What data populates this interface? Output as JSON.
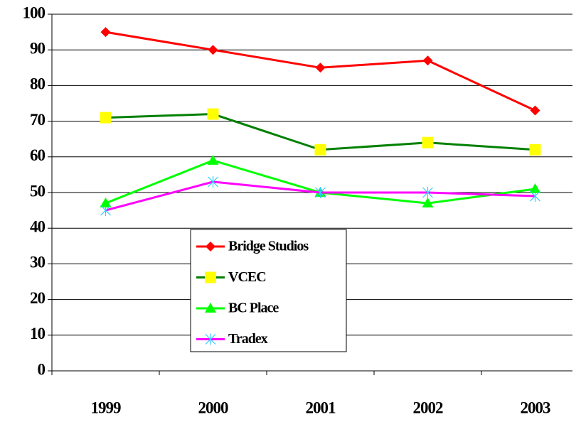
{
  "chart_data": {
    "type": "line",
    "categories": [
      "1999",
      "2000",
      "2001",
      "2002",
      "2003"
    ],
    "series": [
      {
        "name": "Bridge Studios",
        "color": "#ff0000",
        "marker": "diamond",
        "marker_color": "#ff0000",
        "values": [
          95,
          90,
          85,
          87,
          73
        ]
      },
      {
        "name": "VCEC",
        "color": "#008000",
        "marker": "square",
        "marker_color": "#ffff00",
        "values": [
          71,
          72,
          62,
          64,
          62
        ]
      },
      {
        "name": "BC Place",
        "color": "#00ff00",
        "marker": "triangle",
        "marker_color": "#00ff00",
        "values": [
          47,
          59,
          50,
          47,
          51
        ]
      },
      {
        "name": "Tradex",
        "color": "#ff00ff",
        "marker": "star",
        "marker_color": "#33ccff",
        "values": [
          45,
          53,
          50,
          50,
          49
        ]
      }
    ],
    "ylim": [
      0,
      100
    ],
    "yticks": [
      0,
      10,
      20,
      30,
      40,
      50,
      60,
      70,
      80,
      90,
      100
    ],
    "grid": true,
    "legend": "lower-center"
  }
}
